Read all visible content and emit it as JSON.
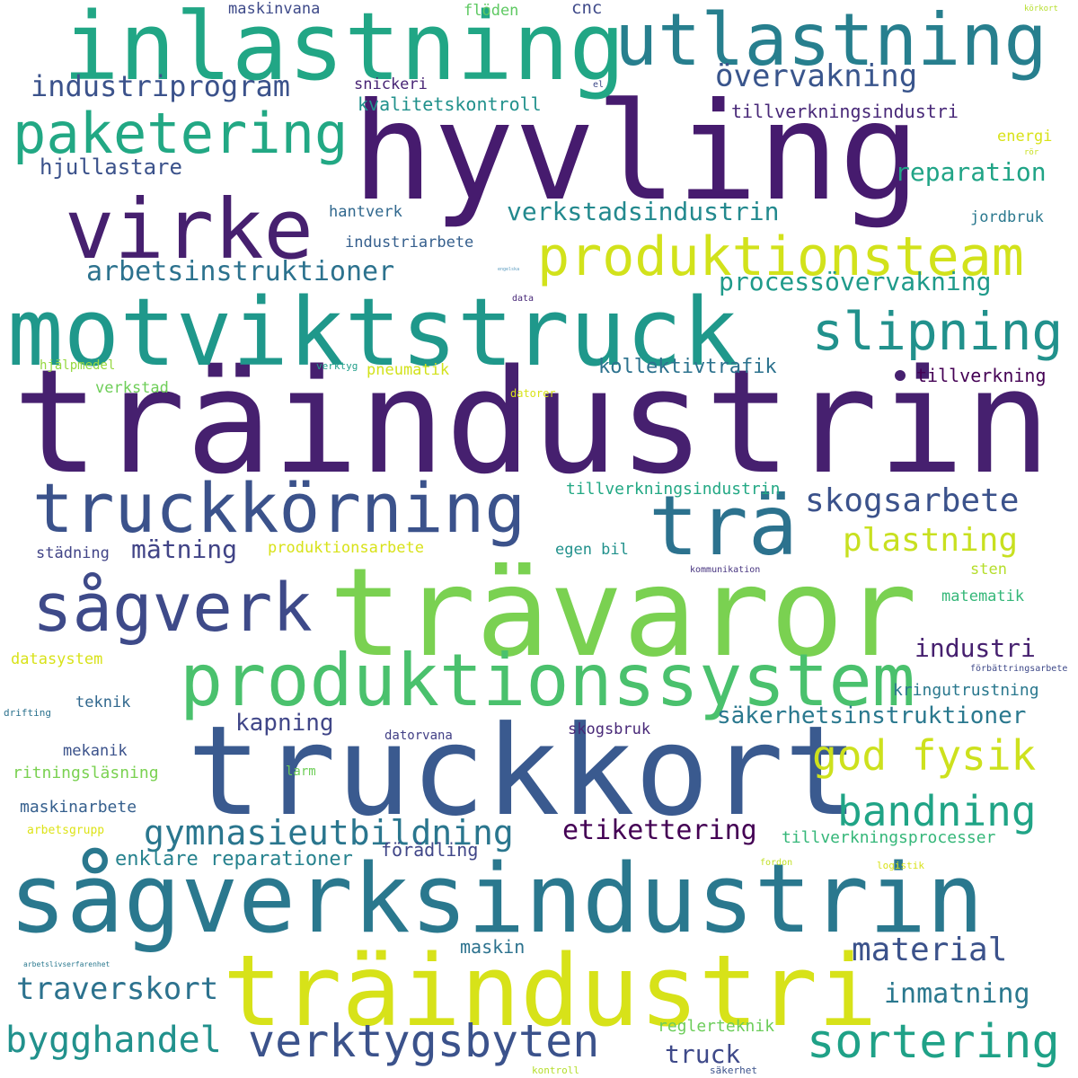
{
  "words": [
    {
      "text": "träindustrin",
      "color": "#46206f"
    },
    {
      "text": "hyvling",
      "color": "#461b6e"
    },
    {
      "text": "sågverksindustrin",
      "color": "#2a788e"
    },
    {
      "text": "truckkort",
      "color": "#3a5a8f"
    },
    {
      "text": "trävaror",
      "color": "#7ad151"
    },
    {
      "text": "inlastning",
      "color": "#21a685"
    },
    {
      "text": "motviktstruck",
      "color": "#1f988b"
    },
    {
      "text": "träindustri",
      "color": "#d7e219"
    },
    {
      "text": "utlastning",
      "color": "#277f8e"
    },
    {
      "text": "virke",
      "color": "#46206f"
    },
    {
      "text": "produktionssystem",
      "color": "#4ac16d"
    },
    {
      "text": "truckkörning",
      "color": "#3b528b"
    },
    {
      "text": "trä",
      "color": "#2c728e"
    },
    {
      "text": "produktionsteam",
      "color": "#d2e21b"
    },
    {
      "text": "paketering",
      "color": "#22a884"
    },
    {
      "text": "sågverk",
      "color": "#3e4a89"
    },
    {
      "text": "slipning",
      "color": "#21918c"
    },
    {
      "text": "verktygsbyten",
      "color": "#3b528b"
    },
    {
      "text": "sortering",
      "color": "#1fa187"
    },
    {
      "text": "bandning",
      "color": "#20a486"
    },
    {
      "text": "god fysik",
      "color": "#cde11d"
    },
    {
      "text": "skogsarbete",
      "color": "#3b528b"
    },
    {
      "text": "gymnasieutbildning",
      "color": "#2a768e"
    },
    {
      "text": "övervakning",
      "color": "#39558c"
    },
    {
      "text": "bygghandel",
      "color": "#21918c"
    },
    {
      "text": "plastning",
      "color": "#c8e020"
    },
    {
      "text": "industriprogram",
      "color": "#3b528b"
    },
    {
      "text": "material",
      "color": "#3b528b"
    },
    {
      "text": "arbetsinstruktioner",
      "color": "#2c728e"
    },
    {
      "text": "traverskort",
      "color": "#2c728e"
    },
    {
      "text": "verkstadsindustrin",
      "color": "#23898e"
    },
    {
      "text": "processövervakning",
      "color": "#1f9a8a"
    },
    {
      "text": "etikettering",
      "color": "#440154"
    },
    {
      "text": "inmatning",
      "color": "#2a788e"
    },
    {
      "text": "reparation",
      "color": "#20a486"
    },
    {
      "text": "kapning",
      "color": "#404688"
    },
    {
      "text": "mätning",
      "color": "#414487"
    },
    {
      "text": "säkerhetsinstruktioner",
      "color": "#2a788e"
    },
    {
      "text": "industri",
      "color": "#46206f"
    },
    {
      "text": "enklare reparationer",
      "color": "#26828e"
    },
    {
      "text": "truck",
      "color": "#3e4989"
    },
    {
      "text": "hjullastare",
      "color": "#3b528b"
    },
    {
      "text": "kollektivtrafik",
      "color": "#2c728e"
    },
    {
      "text": "tillverkningsindustri",
      "color": "#482878"
    },
    {
      "text": "tillverkningsprocesser",
      "color": "#35b779"
    },
    {
      "text": "tillverkningsindustrin",
      "color": "#22a884"
    },
    {
      "text": "kvalitetskontroll",
      "color": "#21918c"
    },
    {
      "text": "förädling",
      "color": "#404688"
    },
    {
      "text": "maskin",
      "color": "#2c728e"
    },
    {
      "text": "regler­teknik",
      "color": "#6ccd5a"
    },
    {
      "text": "produktionsarbete",
      "color": "#d8e219"
    },
    {
      "text": "tillverkning",
      "color": "#440154"
    },
    {
      "text": "kringutrustning",
      "color": "#2a788e"
    },
    {
      "text": "ritningsläsning",
      "color": "#7ad151"
    },
    {
      "text": "maskinarbete",
      "color": "#355f8d"
    },
    {
      "text": "hantverk",
      "color": "#31688e"
    },
    {
      "text": "industriarbete",
      "color": "#355f8d"
    },
    {
      "text": "snickeri",
      "color": "#482475"
    },
    {
      "text": "maskinvana",
      "color": "#3e4a89"
    },
    {
      "text": "flöden",
      "color": "#5ec962"
    },
    {
      "text": "cnc",
      "color": "#3e4989"
    },
    {
      "text": "pneumatik",
      "color": "#d2e21b"
    },
    {
      "text": "verkstad",
      "color": "#6ece58"
    },
    {
      "text": "städning",
      "color": "#414487"
    },
    {
      "text": "egen bil",
      "color": "#21918c"
    },
    {
      "text": "sten",
      "color": "#b5de2b"
    },
    {
      "text": "matematik",
      "color": "#35b779"
    },
    {
      "text": "datasystem",
      "color": "#d8e219"
    },
    {
      "text": "teknik",
      "color": "#31688e"
    },
    {
      "text": "mekanik",
      "color": "#3b528b"
    },
    {
      "text": "skogsbruk",
      "color": "#482878"
    },
    {
      "text": "datorvana",
      "color": "#424086"
    },
    {
      "text": "jordbruk",
      "color": "#2a788e"
    },
    {
      "text": "energi",
      "color": "#d8e219"
    },
    {
      "text": "larm",
      "color": "#6ece58"
    },
    {
      "text": "arbetsgrupp",
      "color": "#dde318"
    },
    {
      "text": "hjälpmedel",
      "color": "#95d840"
    },
    {
      "text": "verktyg",
      "color": "#1f9e89"
    },
    {
      "text": "datorer",
      "color": "#d8e219"
    },
    {
      "text": "data",
      "color": "#482878"
    },
    {
      "text": "engelska",
      "color": "#5b9bbf"
    },
    {
      "text": "el",
      "color": "#3e4a89"
    },
    {
      "text": "rör",
      "color": "#c8e020"
    },
    {
      "text": "körkort",
      "color": "#b5de2b"
    },
    {
      "text": "kommunikation",
      "color": "#46337f"
    },
    {
      "text": "förbättringsarbete",
      "color": "#3e4989"
    },
    {
      "text": "drifting",
      "color": "#2c728e"
    },
    {
      "text": "fordon",
      "color": "#c0df25"
    },
    {
      "text": "logistik",
      "color": "#d8e219"
    },
    {
      "text": "arbetslivserfarenhet",
      "color": "#2a788e"
    },
    {
      "text": "kontroll",
      "color": "#b5de2b"
    },
    {
      "text": "säkerhet",
      "color": "#3b528b"
    }
  ]
}
